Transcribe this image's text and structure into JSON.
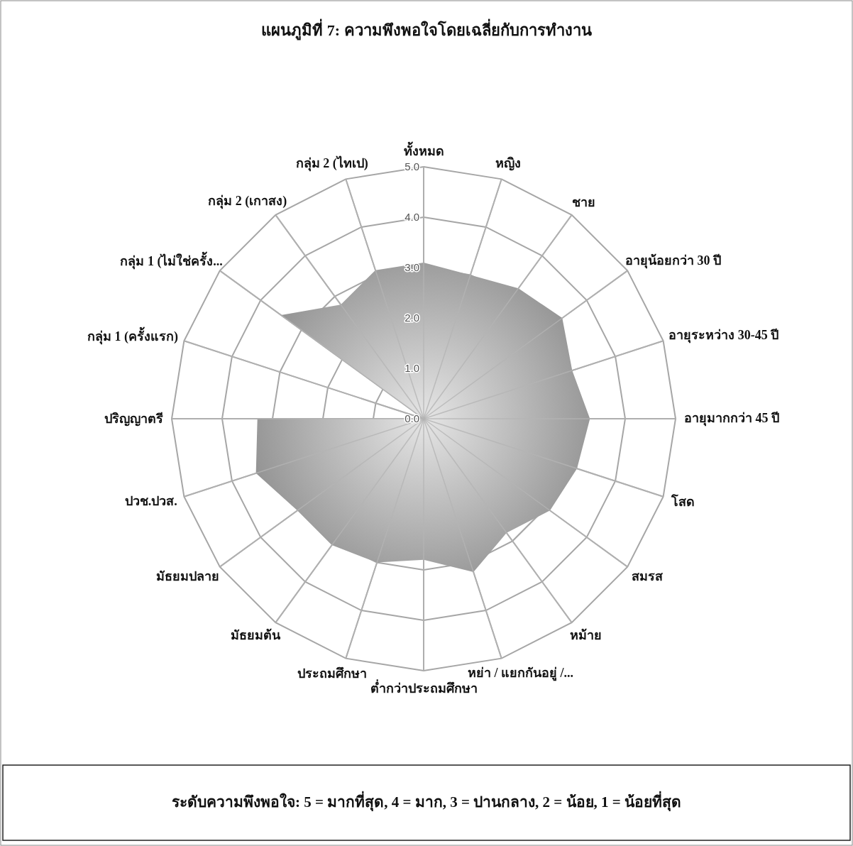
{
  "chart_data": {
    "type": "radar",
    "title": "แผนภูมิที่ 7: ความพึงพอใจโดยเฉลี่ยกับการทำงาน",
    "categories": [
      "ทั้งหมด",
      "หญิง",
      "ชาย",
      "อายุน้อยกว่า 30 ปี",
      "อายุระหว่าง 30-45 ปี",
      "อายุมากกว่า 45 ปี",
      "โสด",
      "สมรส",
      "หม้าย",
      "หย่า / แยกกันอยู่ /...",
      "ต่ำกว่าประถมศึกษา",
      "ประถมศึกษา",
      "มัธยมต้น",
      "มัธยมปลาย",
      "ปวช.ปวส.",
      "ปริญญาตรี",
      "กลุ่ม 1 (ครั้งแรก)",
      "กลุ่ม 1 (ไม่ใช่ครั้ง...",
      "กลุ่ม 2 (เกาสง)",
      "กลุ่ม 2 (ไทเป)"
    ],
    "series": [
      {
        "color": "#8e8e8e",
        "values": [
          3.1,
          3.0,
          3.2,
          3.4,
          3.1,
          3.3,
          3.2,
          3.1,
          2.8,
          3.2,
          2.8,
          3.0,
          3.1,
          3.1,
          3.5,
          3.3,
          0,
          3.5,
          2.8,
          3.1
        ]
      }
    ],
    "ylim": [
      0,
      5
    ],
    "yticks": [
      {
        "value": 0,
        "label": "0.0"
      },
      {
        "value": 1,
        "label": "1.0"
      },
      {
        "value": 2,
        "label": "2.0"
      },
      {
        "value": 3,
        "label": "3.0"
      },
      {
        "value": 4,
        "label": "4.0"
      },
      {
        "value": 5,
        "label": "5.0"
      }
    ],
    "grid": true,
    "annotations": [
      "ระดับความพึงพอใจ: 5 = มากที่สุด, 4 = มาก, 3 = ปานกลาง, 2 = น้อย, 1 = น้อยที่สุด"
    ]
  }
}
